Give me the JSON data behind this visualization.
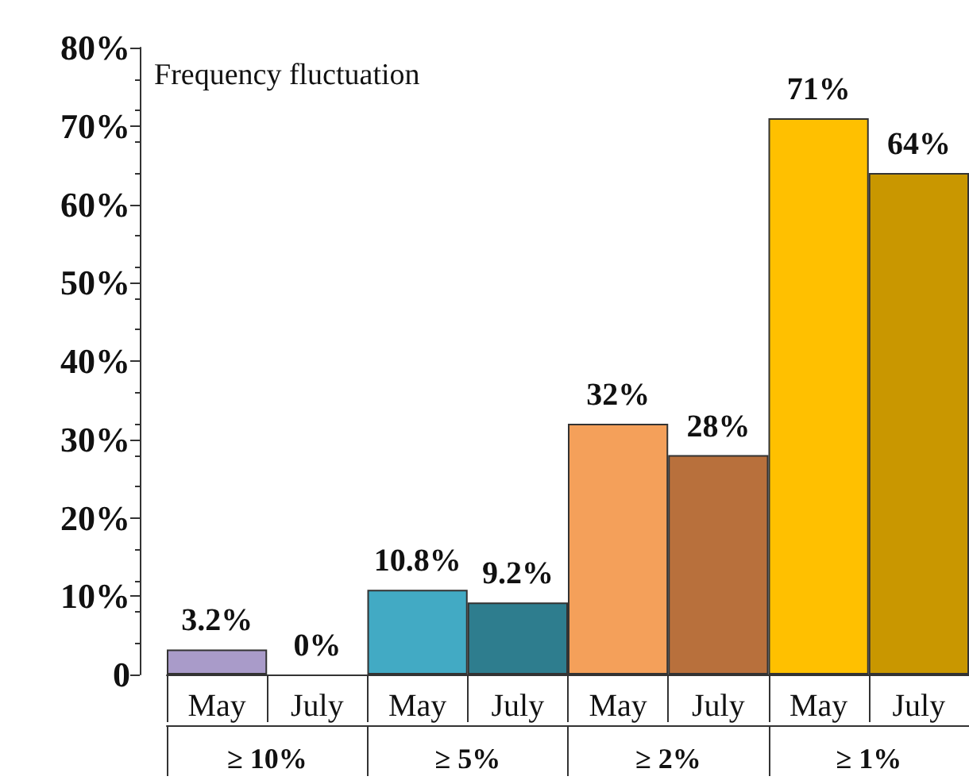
{
  "chart_data": {
    "type": "bar",
    "title": "Frequency fluctuation",
    "categories": [
      "May",
      "July",
      "May",
      "July",
      "May",
      "July",
      "May",
      "July"
    ],
    "values": [
      3.2,
      0,
      10.8,
      9.2,
      32,
      28,
      71,
      64
    ],
    "colors": [
      "#a99bc9",
      "#a99bc9",
      "#42aac4",
      "#2e7d8e",
      "#f4a05a",
      "#b8703c",
      "#ffc000",
      "#c99700"
    ],
    "value_labels": [
      "3.2%",
      "0%",
      "10.8%",
      "9.2%",
      "32%",
      "28%",
      "71%",
      "64%"
    ],
    "annotations": [
      "≥ 10%",
      "≥ 5%",
      "≥ 2%",
      "≥ 1%"
    ],
    "ylim": [
      0,
      80
    ],
    "yticks": [
      {
        "value": 0,
        "label": "0"
      },
      {
        "value": 10,
        "label": "10%"
      },
      {
        "value": 20,
        "label": "20%"
      },
      {
        "value": 30,
        "label": "30%"
      },
      {
        "value": 40,
        "label": "40%"
      },
      {
        "value": 50,
        "label": "50%"
      },
      {
        "value": 60,
        "label": "60%"
      },
      {
        "value": 70,
        "label": "70%"
      },
      {
        "value": 80,
        "label": "80%"
      }
    ],
    "grid": false
  }
}
